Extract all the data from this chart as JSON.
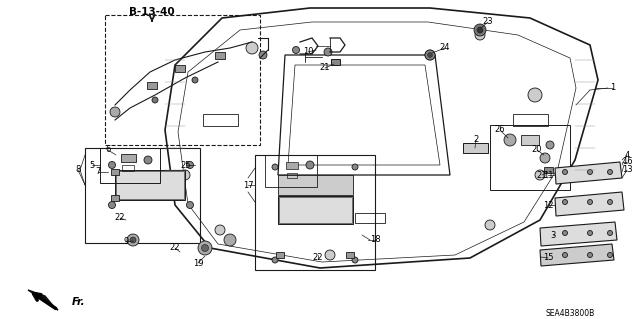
{
  "bg_color": "#ffffff",
  "fig_width": 6.4,
  "fig_height": 3.19,
  "dpi": 100,
  "line_color": "#1a1a1a",
  "text_color": "#000000",
  "footer_text": "SEA4B3800B",
  "header_text": "B-13-40"
}
